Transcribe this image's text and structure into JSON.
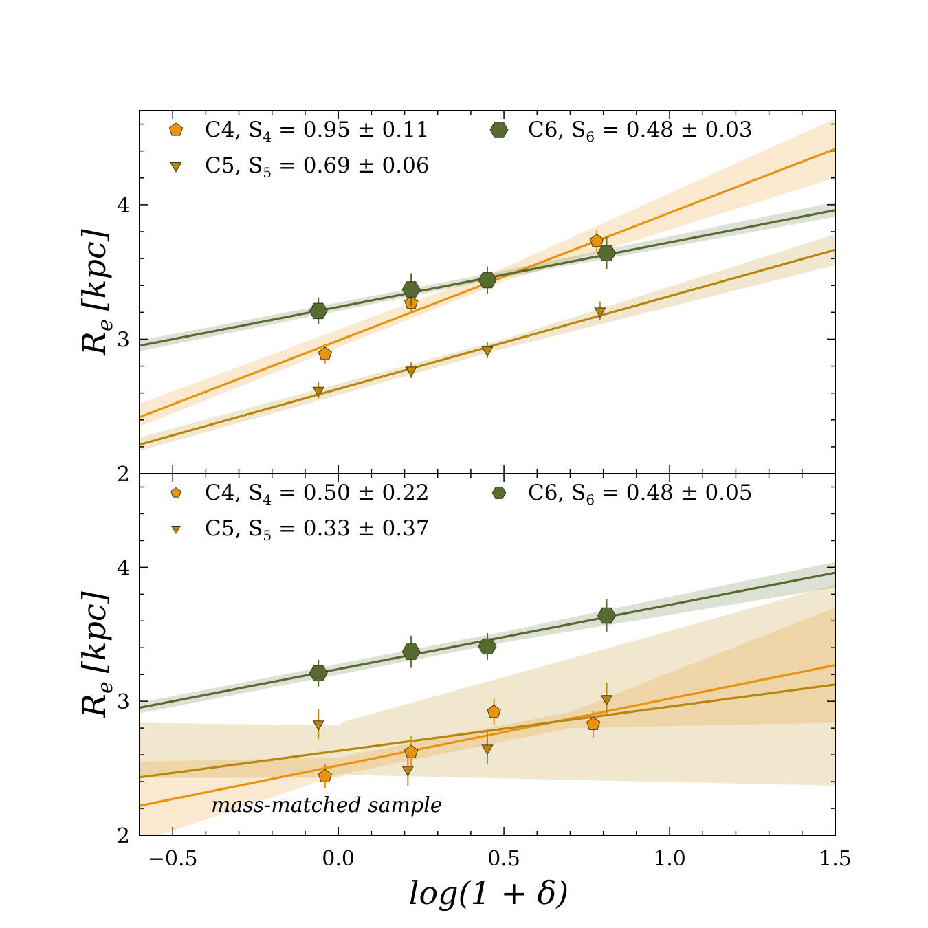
{
  "chart_data": [
    {
      "type": "scatter",
      "panel": "top",
      "xlabel": "log(1 + δ)",
      "ylabel": "R_e [kpc]",
      "ylabel_main": "R",
      "ylabel_sub": "e",
      "ylabel_unit": "[kpc]",
      "xlim": [
        -0.6,
        1.5
      ],
      "ylim": [
        2,
        4.7
      ],
      "yticks": [
        2,
        3,
        4
      ],
      "ytick_labels": [
        "2",
        "3",
        "4"
      ],
      "annotation": "",
      "series": [
        {
          "name": "C4",
          "label": "C4,  S",
          "sub": "4",
          "stat": " = 0.95 ± 0.11",
          "marker": "pentagon",
          "color": "#e8920e",
          "x": [
            -0.04,
            0.22,
            0.78
          ],
          "y": [
            2.89,
            3.27,
            3.73
          ],
          "yerr": [
            0.07,
            0.07,
            0.08
          ],
          "fit": {
            "slope": 0.95,
            "intercept": 2.99,
            "band_x": [
              -0.6,
              0.5,
              1.5
            ],
            "band_lo": [
              2.35,
              3.43,
              4.2
            ],
            "band_hi": [
              2.52,
              3.53,
              4.64
            ]
          }
        },
        {
          "name": "C5",
          "label": "C5,  S",
          "sub": "5",
          "stat": " = 0.69 ± 0.06",
          "marker": "triangle-down",
          "color": "#b8860b",
          "x": [
            -0.06,
            0.22,
            0.45,
            0.79
          ],
          "y": [
            2.62,
            2.77,
            2.92,
            3.21
          ],
          "yerr": [
            0.06,
            0.06,
            0.06,
            0.07
          ],
          "fit": {
            "slope": 0.69,
            "intercept": 2.63,
            "band_x": [
              -0.6,
              0.5,
              1.5
            ],
            "band_lo": [
              2.17,
              2.93,
              3.55
            ],
            "band_hi": [
              2.27,
              3.0,
              3.78
            ]
          }
        },
        {
          "name": "C6",
          "label": "C6,  S",
          "sub": "6",
          "stat": " = 0.48 ± 0.03",
          "marker": "hexagon",
          "color": "#556b2f",
          "x": [
            -0.06,
            0.22,
            0.45,
            0.81
          ],
          "y": [
            3.21,
            3.37,
            3.44,
            3.64
          ],
          "yerr": [
            0.1,
            0.12,
            0.1,
            0.12
          ],
          "fit": {
            "slope": 0.48,
            "intercept": 3.24,
            "band_x": [
              -0.6,
              0.5,
              1.5
            ],
            "band_lo": [
              2.91,
              3.46,
              3.91
            ],
            "band_hi": [
              2.99,
              3.51,
              4.02
            ]
          }
        }
      ]
    },
    {
      "type": "scatter",
      "panel": "bottom",
      "xlabel": "log(1 + δ)",
      "ylabel": "R_e [kpc]",
      "ylabel_main": "R",
      "ylabel_sub": "e",
      "ylabel_unit": "[kpc]",
      "xlim": [
        -0.6,
        1.5
      ],
      "ylim": [
        2,
        4.7
      ],
      "yticks": [
        2,
        3,
        4
      ],
      "ytick_labels": [
        "2",
        "3",
        "4"
      ],
      "xticks": [
        -0.5,
        0.0,
        0.5,
        1.0,
        1.5
      ],
      "xtick_labels": [
        "−0.5",
        "0.0",
        "0.5",
        "1.0",
        "1.5"
      ],
      "annotation": "mass-matched sample",
      "series": [
        {
          "name": "C4",
          "label": "C4,  S",
          "sub": "4",
          "stat": " = 0.50 ± 0.22",
          "marker": "pentagon",
          "color": "#e8920e",
          "x": [
            -0.04,
            0.22,
            0.47,
            0.77
          ],
          "y": [
            2.44,
            2.62,
            2.92,
            2.83
          ],
          "yerr": [
            0.09,
            0.12,
            0.1,
            0.1
          ],
          "fit": {
            "slope": 0.5,
            "intercept": 2.52,
            "band_x": [
              -0.6,
              0.0,
              0.7,
              1.5
            ],
            "band_lo": [
              1.95,
              2.45,
              2.8,
              2.84
            ],
            "band_hi": [
              2.55,
              2.58,
              2.92,
              3.7
            ]
          }
        },
        {
          "name": "C5",
          "label": "C5,  S",
          "sub": "5",
          "stat": " = 0.33 ± 0.37",
          "marker": "triangle-down",
          "color": "#b8860b",
          "x": [
            -0.06,
            0.21,
            0.45,
            0.81
          ],
          "y": [
            2.83,
            2.49,
            2.65,
            3.02
          ],
          "yerr": [
            0.11,
            0.12,
            0.12,
            0.12
          ],
          "fit": {
            "slope": 0.33,
            "intercept": 2.63,
            "band_x": [
              -0.6,
              0.0,
              0.02,
              1.5
            ],
            "band_lo": [
              2.43,
              2.43,
              2.45,
              2.37
            ],
            "band_hi": [
              2.84,
              2.82,
              2.85,
              3.87
            ]
          }
        },
        {
          "name": "C6",
          "label": "C6,  S",
          "sub": "6",
          "stat": " = 0.48 ± 0.05",
          "marker": "hexagon",
          "color": "#556b2f",
          "x": [
            -0.06,
            0.22,
            0.45,
            0.81
          ],
          "y": [
            3.21,
            3.37,
            3.41,
            3.64
          ],
          "yerr": [
            0.1,
            0.12,
            0.1,
            0.12
          ],
          "fit": {
            "slope": 0.48,
            "intercept": 3.24,
            "band_x": [
              -0.6,
              0.5,
              1.5
            ],
            "band_lo": [
              2.91,
              3.44,
              3.85
            ],
            "band_hi": [
              2.99,
              3.52,
              4.04
            ]
          }
        }
      ]
    }
  ]
}
